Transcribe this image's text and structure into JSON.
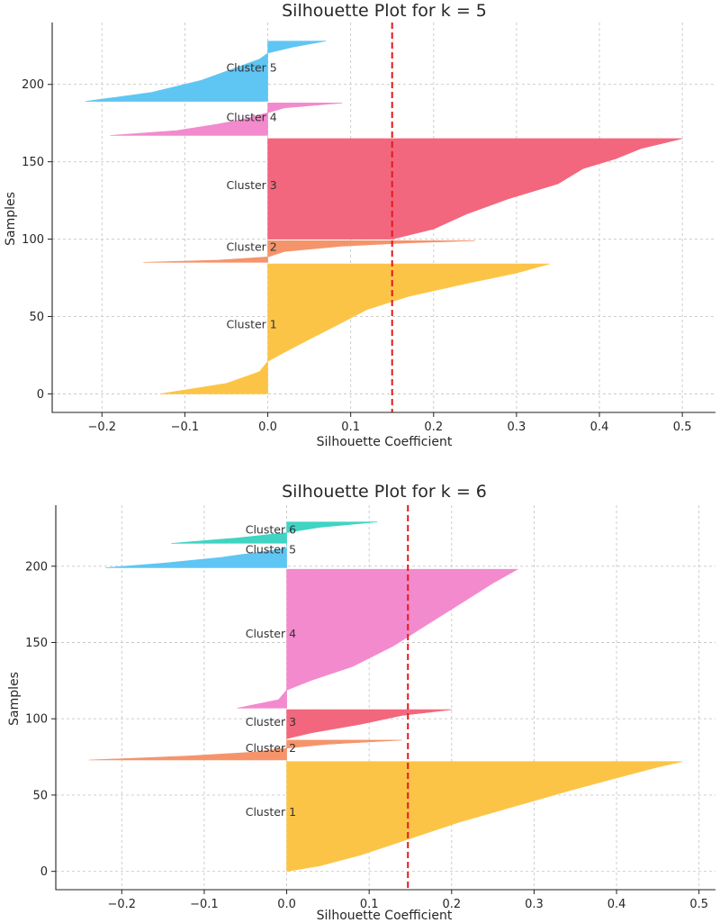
{
  "chart_data": [
    {
      "type": "area",
      "title": "Silhouette Plot for k = 5",
      "xlabel": "Silhouette Coefficient",
      "ylabel": "Samples",
      "xlim": [
        -0.26,
        0.54
      ],
      "ylim": [
        -12,
        240
      ],
      "xticks": [
        -0.2,
        -0.1,
        0.0,
        0.1,
        0.2,
        0.3,
        0.4,
        0.5
      ],
      "xtick_labels": [
        "−0.2",
        "−0.1",
        "0.0",
        "0.1",
        "0.2",
        "0.3",
        "0.4",
        "0.5"
      ],
      "yticks": [
        0,
        50,
        100,
        150,
        200
      ],
      "ytick_labels": [
        "0",
        "50",
        "100",
        "150",
        "200"
      ],
      "grid": true,
      "average_silhouette": 0.15,
      "clusters": [
        {
          "label": "Cluster 1",
          "color": "#fcc447",
          "y_start": 0,
          "label_y": 45,
          "profile": [
            [
              0,
              -0.13
            ],
            [
              0.08,
              -0.05
            ],
            [
              0.17,
              -0.01
            ],
            [
              0.25,
              0.0
            ],
            [
              0.32,
              0.02
            ],
            [
              0.42,
              0.05
            ],
            [
              0.55,
              0.09
            ],
            [
              0.65,
              0.12
            ],
            [
              0.75,
              0.17
            ],
            [
              0.85,
              0.24
            ],
            [
              0.93,
              0.3
            ],
            [
              1,
              0.34
            ]
          ],
          "y_end": 84
        },
        {
          "label": "Cluster 2",
          "color": "#f5946b",
          "y_start": 85,
          "label_y": 95,
          "profile": [
            [
              0,
              -0.15
            ],
            [
              0.1,
              -0.06
            ],
            [
              0.25,
              0.0
            ],
            [
              0.5,
              0.02
            ],
            [
              0.75,
              0.09
            ],
            [
              0.9,
              0.17
            ],
            [
              1,
              0.25
            ]
          ],
          "y_end": 99
        },
        {
          "label": "Cluster 3",
          "color": "#f2677d",
          "y_start": 100,
          "label_y": 135,
          "profile": [
            [
              0,
              0.15
            ],
            [
              0.1,
              0.2
            ],
            [
              0.25,
              0.24
            ],
            [
              0.4,
              0.29
            ],
            [
              0.55,
              0.35
            ],
            [
              0.7,
              0.38
            ],
            [
              0.8,
              0.42
            ],
            [
              0.9,
              0.45
            ],
            [
              1,
              0.5
            ]
          ],
          "y_end": 165
        },
        {
          "label": "Cluster 4",
          "color": "#f38acd",
          "y_start": 167,
          "label_y": 179,
          "profile": [
            [
              0,
              -0.19
            ],
            [
              0.15,
              -0.11
            ],
            [
              0.35,
              -0.06
            ],
            [
              0.5,
              -0.03
            ],
            [
              0.7,
              0.0
            ],
            [
              0.85,
              0.02
            ],
            [
              1,
              0.09
            ]
          ],
          "y_end": 188
        },
        {
          "label": "Cluster 5",
          "color": "#5fc6f4",
          "y_start": 189,
          "label_y": 211,
          "profile": [
            [
              0,
              -0.22
            ],
            [
              0.15,
              -0.14
            ],
            [
              0.35,
              -0.08
            ],
            [
              0.55,
              -0.04
            ],
            [
              0.7,
              -0.01
            ],
            [
              0.8,
              0.0
            ],
            [
              0.9,
              0.03
            ],
            [
              1,
              0.07
            ]
          ],
          "y_end": 228
        }
      ]
    },
    {
      "type": "area",
      "title": "Silhouette Plot for k = 6",
      "xlabel": "Silhouette Coefficient",
      "ylabel": "Samples",
      "xlim": [
        -0.28,
        0.52
      ],
      "ylim": [
        -12,
        240
      ],
      "xticks": [
        -0.2,
        -0.1,
        0.0,
        0.1,
        0.2,
        0.3,
        0.4,
        0.5
      ],
      "xtick_labels": [
        "−0.2",
        "−0.1",
        "0.0",
        "0.1",
        "0.2",
        "0.3",
        "0.4",
        "0.5"
      ],
      "yticks": [
        0,
        50,
        100,
        150,
        200
      ],
      "ytick_labels": [
        "0",
        "50",
        "100",
        "150",
        "200"
      ],
      "grid": true,
      "average_silhouette": 0.147,
      "clusters": [
        {
          "label": "Cluster 1",
          "color": "#fcc447",
          "y_start": 0,
          "label_y": 39,
          "profile": [
            [
              0,
              0.0
            ],
            [
              0.05,
              0.04
            ],
            [
              0.15,
              0.09
            ],
            [
              0.3,
              0.15
            ],
            [
              0.45,
              0.21
            ],
            [
              0.6,
              0.28
            ],
            [
              0.75,
              0.35
            ],
            [
              0.85,
              0.4
            ],
            [
              0.95,
              0.45
            ],
            [
              1,
              0.48
            ]
          ],
          "y_end": 72
        },
        {
          "label": "Cluster 2",
          "color": "#f5946b",
          "y_start": 73,
          "label_y": 81,
          "profile": [
            [
              0,
              -0.24
            ],
            [
              0.2,
              -0.12
            ],
            [
              0.4,
              -0.04
            ],
            [
              0.6,
              0.0
            ],
            [
              0.8,
              0.05
            ],
            [
              1,
              0.14
            ]
          ],
          "y_end": 86
        },
        {
          "label": "Cluster 3",
          "color": "#f2677d",
          "y_start": 87,
          "label_y": 98,
          "profile": [
            [
              0,
              0.0
            ],
            [
              0.2,
              0.03
            ],
            [
              0.5,
              0.09
            ],
            [
              0.8,
              0.14
            ],
            [
              1,
              0.2
            ]
          ],
          "y_end": 106
        },
        {
          "label": "Cluster 4",
          "color": "#f38acd",
          "y_start": 107,
          "label_y": 156,
          "profile": [
            [
              0,
              -0.06
            ],
            [
              0.06,
              -0.01
            ],
            [
              0.13,
              0.0
            ],
            [
              0.2,
              0.03
            ],
            [
              0.3,
              0.08
            ],
            [
              0.45,
              0.13
            ],
            [
              0.6,
              0.17
            ],
            [
              0.75,
              0.21
            ],
            [
              0.9,
              0.25
            ],
            [
              1,
              0.28
            ]
          ],
          "y_end": 198
        },
        {
          "label": "Cluster 5",
          "color": "#5fc6f4",
          "y_start": 199,
          "label_y": 211,
          "profile": [
            [
              0,
              -0.22
            ],
            [
              0.2,
              -0.15
            ],
            [
              0.45,
              -0.08
            ],
            [
              0.7,
              -0.03
            ],
            [
              0.85,
              0.0
            ],
            [
              1,
              0.0
            ]
          ],
          "y_end": 214
        },
        {
          "label": "Cluster 6",
          "color": "#3fd4c3",
          "y_start": 215,
          "label_y": 224,
          "profile": [
            [
              0,
              -0.14
            ],
            [
              0.25,
              -0.06
            ],
            [
              0.5,
              0.0
            ],
            [
              0.75,
              0.04
            ],
            [
              1,
              0.11
            ]
          ],
          "y_end": 229
        }
      ]
    }
  ]
}
